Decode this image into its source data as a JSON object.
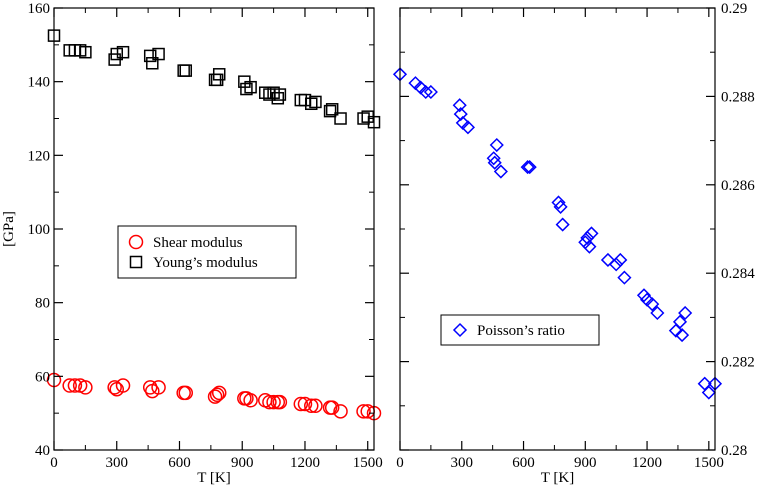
{
  "chart_data": [
    {
      "type": "scatter",
      "xlabel": "T [K]",
      "ylabel": "[GPa]",
      "xlim": [
        0,
        1530
      ],
      "ylim": [
        40,
        160
      ],
      "xticks": [
        0,
        300,
        600,
        900,
        1200,
        1500
      ],
      "yticks": [
        40,
        60,
        80,
        100,
        120,
        140,
        160
      ],
      "legend_position": "middle-left",
      "series": [
        {
          "name": "Shear modulus",
          "marker": "circle",
          "color": "#ff0000",
          "x": [
            0,
            75,
            100,
            125,
            150,
            290,
            300,
            330,
            460,
            470,
            500,
            620,
            630,
            770,
            780,
            790,
            910,
            920,
            940,
            1010,
            1030,
            1050,
            1070,
            1080,
            1180,
            1200,
            1230,
            1250,
            1320,
            1330,
            1370,
            1480,
            1500,
            1530
          ],
          "y": [
            59,
            57.5,
            57.5,
            57.5,
            57,
            57,
            56.5,
            57.5,
            57,
            56,
            57,
            55.5,
            55.5,
            54.5,
            55,
            55.5,
            54,
            54,
            53.5,
            53.5,
            53,
            53,
            53,
            53,
            52.5,
            52.5,
            52,
            52,
            51.5,
            51.5,
            50.5,
            50.5,
            50.5,
            50
          ]
        },
        {
          "name": "Young’s modulus",
          "marker": "square",
          "color": "#000000",
          "x": [
            0,
            75,
            100,
            125,
            150,
            290,
            300,
            330,
            460,
            470,
            500,
            620,
            630,
            770,
            780,
            790,
            910,
            920,
            940,
            1010,
            1030,
            1050,
            1070,
            1080,
            1180,
            1200,
            1230,
            1250,
            1320,
            1330,
            1370,
            1480,
            1500,
            1530
          ],
          "y": [
            152.5,
            148.5,
            148.5,
            148.5,
            148,
            146,
            147.5,
            148,
            147,
            145,
            147.5,
            143,
            143,
            140.5,
            140.5,
            142,
            140,
            138,
            138.5,
            137,
            136.5,
            137,
            135.5,
            136.5,
            135,
            135,
            134,
            134.5,
            132,
            132.5,
            130,
            130,
            130.5,
            129
          ]
        }
      ]
    },
    {
      "type": "scatter",
      "xlabel": "T [K]",
      "ylabel": "",
      "xlim": [
        0,
        1530
      ],
      "ylim": [
        0.28,
        0.29
      ],
      "xticks": [
        0,
        300,
        600,
        900,
        1200,
        1500
      ],
      "yticks": [
        0.28,
        0.282,
        0.284,
        0.286,
        0.288,
        0.29
      ],
      "ytick_labels": [
        "0.28",
        "0.282",
        "0.284",
        "0.286",
        "0.288",
        "0.29"
      ],
      "xtick_labels": [
        "0",
        "300",
        "600",
        "900",
        "1200",
        "1500"
      ],
      "y_axis_side": "right",
      "legend_position": "middle-right",
      "series": [
        {
          "name": "Poisson’s ratio",
          "marker": "diamond",
          "color": "#0000ff",
          "x": [
            0,
            75,
            100,
            125,
            150,
            290,
            295,
            305,
            330,
            455,
            460,
            470,
            490,
            620,
            630,
            770,
            780,
            790,
            900,
            910,
            920,
            930,
            1010,
            1050,
            1070,
            1090,
            1185,
            1200,
            1225,
            1250,
            1340,
            1360,
            1370,
            1385,
            1480,
            1500,
            1530
          ],
          "y": [
            0.2885,
            0.2883,
            0.2882,
            0.2881,
            0.2881,
            0.2878,
            0.2876,
            0.2874,
            0.2873,
            0.2866,
            0.2865,
            0.2869,
            0.2863,
            0.2864,
            0.2864,
            0.2856,
            0.2855,
            0.2851,
            0.2847,
            0.2848,
            0.2846,
            0.2849,
            0.2843,
            0.2842,
            0.2843,
            0.2839,
            0.2835,
            0.2834,
            0.2833,
            0.2831,
            0.2827,
            0.2829,
            0.2826,
            0.2831,
            0.2815,
            0.2813,
            0.2815
          ]
        }
      ]
    }
  ],
  "panel_left": {
    "legend": {
      "shear_label": "Shear modulus",
      "young_label": "Young’s modulus"
    }
  },
  "panel_right": {
    "legend": {
      "poisson_label": "Poisson’s ratio"
    }
  }
}
